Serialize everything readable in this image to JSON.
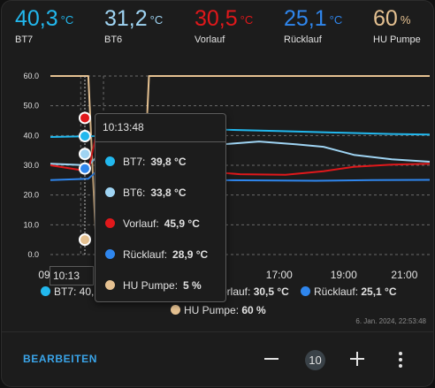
{
  "colors": {
    "bt7": "#22b8ee",
    "bt6": "#9fd4f3",
    "vorlauf": "#e0181b",
    "ruecklauf": "#2f86ed",
    "hu_pumpe": "#e5c191",
    "accent": "#3aa4e8"
  },
  "readouts": [
    {
      "value": "40,3",
      "unit": "°C",
      "name": "BT7",
      "color": "#22b8ee"
    },
    {
      "value": "31,2",
      "unit": "°C",
      "name": "BT6",
      "color": "#9fd4f3"
    },
    {
      "value": "30,5",
      "unit": "°C",
      "name": "Vorlauf",
      "color": "#e0181b"
    },
    {
      "value": "25,1",
      "unit": "°C",
      "name": "Rücklauf",
      "color": "#2f86ed"
    },
    {
      "value": "60",
      "unit": "%",
      "name": "HU Pumpe",
      "color": "#e5c191"
    }
  ],
  "tooltip": {
    "title": "10:13:48",
    "rows": [
      {
        "label": "BT7:",
        "value": "39,8 °C",
        "color": "#22b8ee"
      },
      {
        "label": "BT6:",
        "value": "33,8 °C",
        "color": "#9fd4f3"
      },
      {
        "label": "Vorlauf:",
        "value": "45,9 °C",
        "color": "#e0181b"
      },
      {
        "label": "Rücklauf:",
        "value": "28,9 °C",
        "color": "#2f86ed"
      },
      {
        "label": "HU Pumpe:",
        "value": "5 %",
        "color": "#e5c191"
      }
    ]
  },
  "x_hover_label": "10:13",
  "legend": {
    "row1_prefix": "BT7: 40,",
    "vorlauf_tail": "orlauf: ",
    "vorlauf_value": "30,5 °C",
    "ruecklauf_label": "Rücklauf: ",
    "ruecklauf_value": "25,1 °C",
    "hu_label": "HU Pumpe: ",
    "hu_value": "60 %"
  },
  "timestamp": "6. Jan. 2024, 22:53:48",
  "footer": {
    "edit_label": "BEARBEITEN",
    "count": "10"
  },
  "chart_data": {
    "type": "line",
    "x_ticks": [
      "09",
      "10:13",
      "17:00",
      "19:00",
      "21:00"
    ],
    "y_ticks": [
      "0.0",
      "10.0",
      "20.0",
      "30.0",
      "40.0",
      "50.0",
      "60.0"
    ],
    "ylim": [
      0,
      60
    ],
    "grid": true,
    "hover_time": "10:13:48",
    "series": [
      {
        "name": "BT7",
        "color": "#22b8ee",
        "points": [
          [
            0,
            39.5
          ],
          [
            0.12,
            39.8
          ],
          [
            0.3,
            40.5
          ],
          [
            0.45,
            42
          ],
          [
            0.6,
            41.5
          ],
          [
            0.75,
            41
          ],
          [
            0.9,
            40.5
          ],
          [
            1,
            40.3
          ]
        ]
      },
      {
        "name": "BT6",
        "color": "#9fd4f3",
        "points": [
          [
            0,
            30.5
          ],
          [
            0.1,
            30
          ],
          [
            0.13,
            33.8
          ],
          [
            0.35,
            36
          ],
          [
            0.55,
            38
          ],
          [
            0.65,
            37
          ],
          [
            0.72,
            36.2
          ],
          [
            0.8,
            33.5
          ],
          [
            0.9,
            32
          ],
          [
            1,
            31.2
          ]
        ]
      },
      {
        "name": "Vorlauf",
        "color": "#e0181b",
        "points": [
          [
            0,
            30
          ],
          [
            0.1,
            28
          ],
          [
            0.13,
            45.9
          ],
          [
            0.16,
            30
          ],
          [
            0.4,
            28
          ],
          [
            0.5,
            27
          ],
          [
            0.62,
            26.8
          ],
          [
            0.72,
            28
          ],
          [
            0.8,
            29.5
          ],
          [
            0.9,
            30.2
          ],
          [
            1,
            30.5
          ]
        ]
      },
      {
        "name": "Rücklauf",
        "color": "#2f86ed",
        "points": [
          [
            0,
            25
          ],
          [
            0.1,
            25.5
          ],
          [
            0.13,
            28.9
          ],
          [
            0.2,
            26
          ],
          [
            0.45,
            25
          ],
          [
            0.7,
            24.8
          ],
          [
            0.85,
            25
          ],
          [
            1,
            25.1
          ]
        ]
      },
      {
        "name": "HU Pumpe",
        "color": "#e5c191",
        "points": [
          [
            0,
            60
          ],
          [
            0.1,
            60
          ],
          [
            0.12,
            5
          ],
          [
            0.24,
            5
          ],
          [
            0.26,
            60
          ],
          [
            1,
            60
          ]
        ]
      }
    ]
  }
}
